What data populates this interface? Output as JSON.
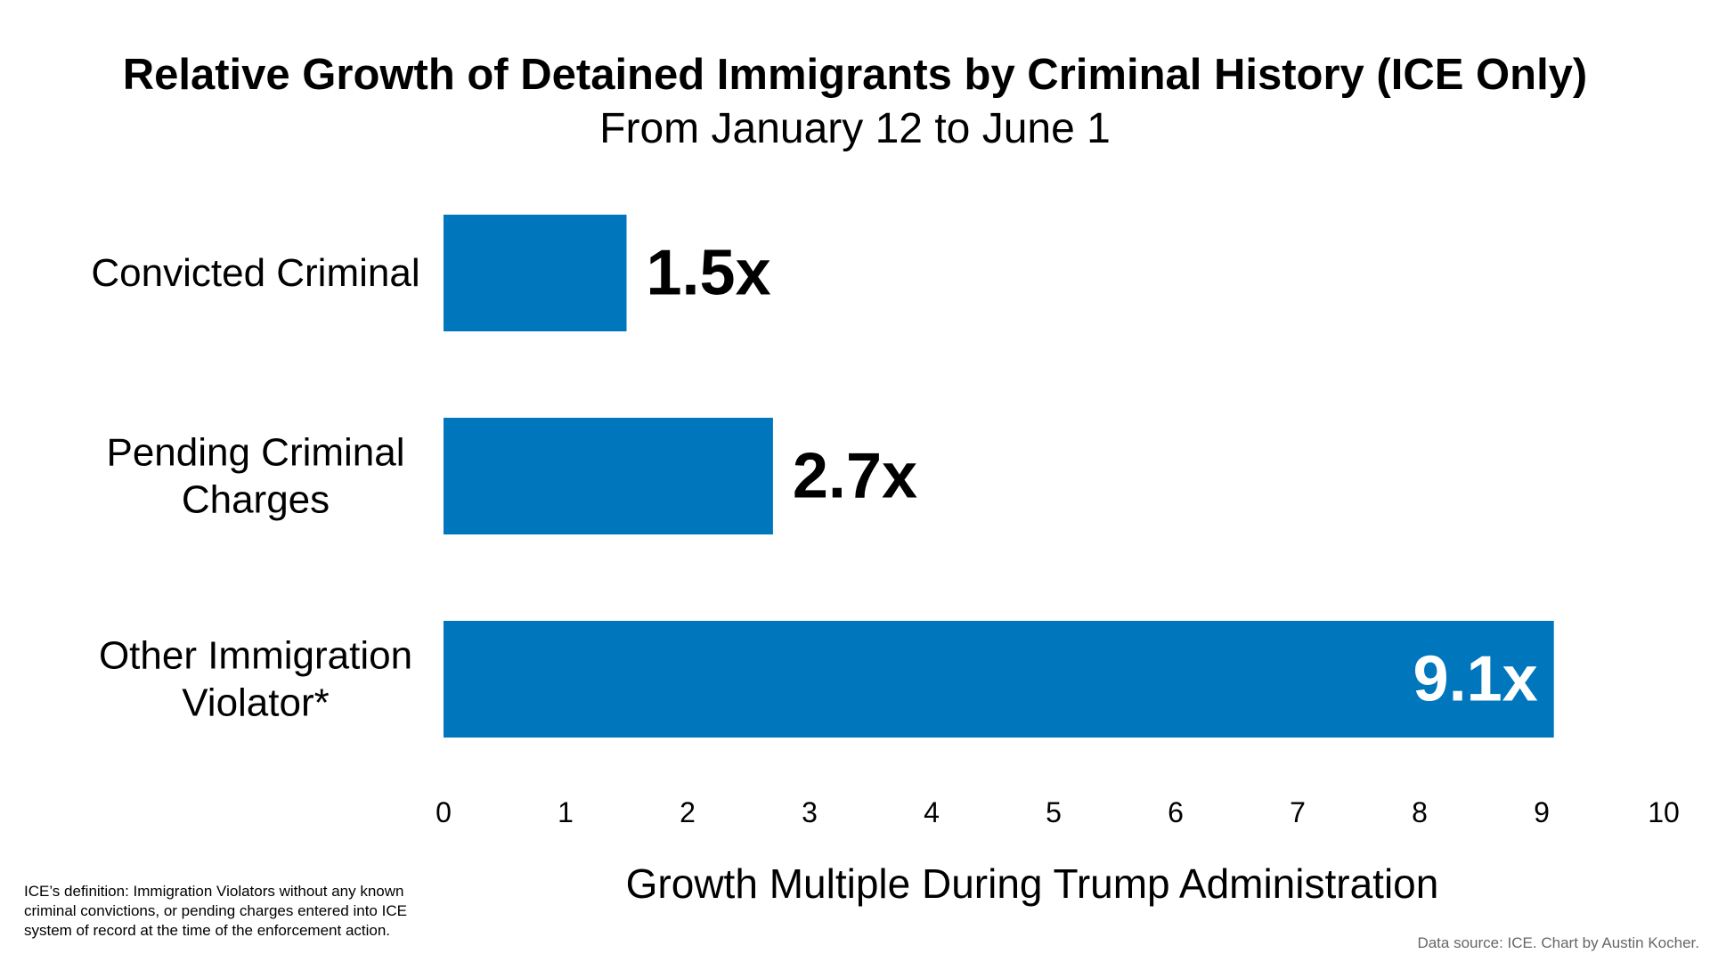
{
  "chart_data": {
    "type": "bar",
    "orientation": "horizontal",
    "title": "Relative Growth of Detained Immigrants by Criminal History (ICE Only)",
    "subtitle": "From January 12 to June 1",
    "categories": [
      [
        "Convicted Criminal"
      ],
      [
        "Pending Criminal",
        "Charges"
      ],
      [
        "Other Immigration",
        "Violator*"
      ]
    ],
    "values": [
      1.5,
      2.7,
      9.1
    ],
    "value_labels": [
      "1.5x",
      "2.7x",
      "9.1x"
    ],
    "xlabel": "Growth Multiple During Trump Administration",
    "xlim": [
      0,
      10
    ],
    "xticks": [
      0,
      1,
      2,
      3,
      4,
      5,
      6,
      7,
      8,
      9,
      10
    ],
    "grid": false,
    "legend": "none",
    "bar_color": "#0077BC"
  },
  "footnote": "ICE’s definition: Immigration Violators without any known criminal convictions, or pending charges entered into ICE system of record at the time of the enforcement action.",
  "source": "Data source: ICE. Chart by Austin Kocher."
}
